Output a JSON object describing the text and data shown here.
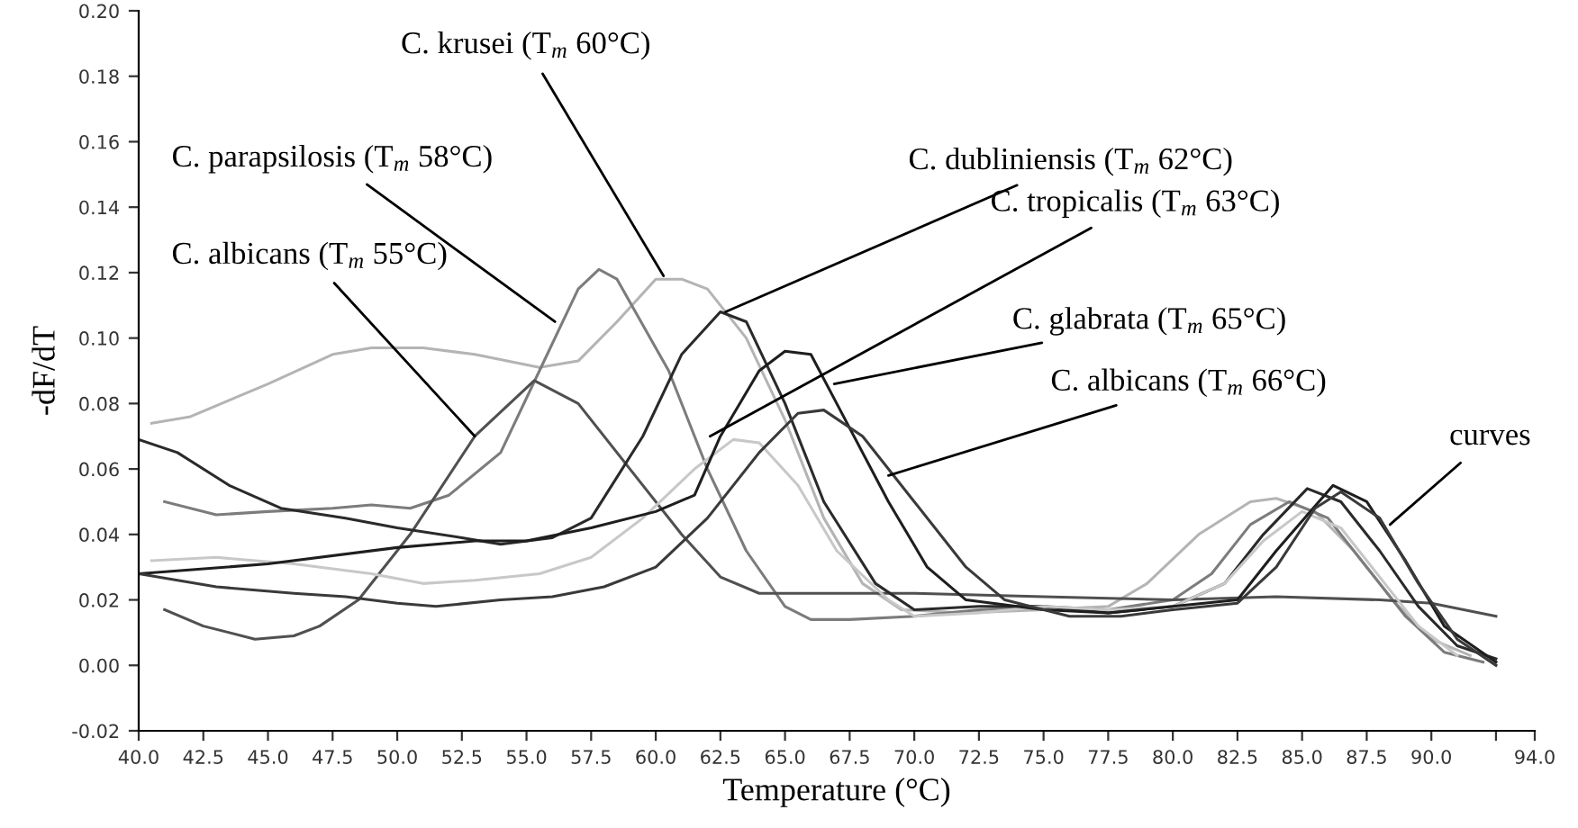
{
  "chart_data": {
    "type": "line",
    "xlabel": "Temperature (°C)",
    "ylabel": "-dF/dT",
    "xlim": [
      40,
      94
    ],
    "ylim": [
      -0.02,
      0.2
    ],
    "xticks": [
      {
        "value": 40,
        "label": "40.0"
      },
      {
        "value": 42.5,
        "label": "42.5"
      },
      {
        "value": 45,
        "label": "45.0"
      },
      {
        "value": 47.5,
        "label": "47.5"
      },
      {
        "value": 50,
        "label": "50.0"
      },
      {
        "value": 52.5,
        "label": "52.5"
      },
      {
        "value": 55,
        "label": "55.0"
      },
      {
        "value": 57.5,
        "label": "57.5"
      },
      {
        "value": 60,
        "label": "60.0"
      },
      {
        "value": 62.5,
        "label": "62.5"
      },
      {
        "value": 65,
        "label": "65.0"
      },
      {
        "value": 67.5,
        "label": "67.5"
      },
      {
        "value": 70,
        "label": "70.0"
      },
      {
        "value": 72.5,
        "label": "72.5"
      },
      {
        "value": 75,
        "label": "75.0"
      },
      {
        "value": 77.5,
        "label": "77.5"
      },
      {
        "value": 80,
        "label": "80.0"
      },
      {
        "value": 82.5,
        "label": "82.5"
      },
      {
        "value": 85,
        "label": "85.0"
      },
      {
        "value": 87.5,
        "label": "87.5"
      },
      {
        "value": 90,
        "label": "90.0"
      },
      {
        "value": 92.5,
        "label": null
      },
      {
        "value": 94,
        "label": "94.0"
      }
    ],
    "yticks": [
      {
        "value": -0.02,
        "label": "-0.02"
      },
      {
        "value": 0,
        "label": "0.00"
      },
      {
        "value": 0.02,
        "label": "0.02"
      },
      {
        "value": 0.04,
        "label": "0.04"
      },
      {
        "value": 0.06,
        "label": "0.06"
      },
      {
        "value": 0.08,
        "label": "0.08"
      },
      {
        "value": 0.1,
        "label": "0.10"
      },
      {
        "value": 0.12,
        "label": "0.12"
      },
      {
        "value": 0.14,
        "label": "0.14"
      },
      {
        "value": 0.16,
        "label": "0.16"
      },
      {
        "value": 0.18,
        "label": "0.18"
      },
      {
        "value": 0.2,
        "label": "0.20"
      }
    ],
    "grid": false,
    "legend": false,
    "line_style": "solid",
    "marker": "none",
    "series": [
      {
        "color": "#b4b4b4",
        "x": [
          40.5,
          42,
          45,
          47.5,
          49,
          51,
          53,
          55.5,
          57,
          58.5,
          60,
          61,
          62,
          63.5,
          65,
          66.5,
          68,
          69.5,
          72,
          75,
          77.5,
          79,
          81,
          83,
          84,
          85.5,
          87,
          88.5,
          90,
          91.5
        ],
        "values": [
          0.074,
          0.076,
          0.086,
          0.095,
          0.097,
          0.097,
          0.095,
          0.091,
          0.093,
          0.105,
          0.118,
          0.118,
          0.115,
          0.1,
          0.075,
          0.045,
          0.025,
          0.017,
          0.016,
          0.017,
          0.018,
          0.025,
          0.04,
          0.05,
          0.051,
          0.047,
          0.035,
          0.02,
          0.008,
          0.003
        ]
      },
      {
        "color": "#7c7c7c",
        "x": [
          41,
          43,
          45,
          47.5,
          49,
          50.5,
          52,
          54,
          55.5,
          57,
          57.8,
          58.5,
          60.5,
          62,
          63.5,
          65,
          66,
          67.5,
          70,
          72.5,
          75,
          77.5,
          80,
          81.5,
          83,
          84.5,
          86,
          87.5,
          89,
          90.5,
          92
        ],
        "values": [
          0.05,
          0.046,
          0.047,
          0.048,
          0.049,
          0.048,
          0.052,
          0.065,
          0.09,
          0.115,
          0.121,
          0.118,
          0.09,
          0.06,
          0.035,
          0.018,
          0.014,
          0.014,
          0.015,
          0.017,
          0.018,
          0.017,
          0.02,
          0.028,
          0.043,
          0.05,
          0.045,
          0.03,
          0.015,
          0.004,
          0.001
        ]
      },
      {
        "color": "#505050",
        "x": [
          41,
          42.5,
          44.5,
          46,
          47,
          48.5,
          50.5,
          53,
          55.3,
          57,
          59,
          61,
          62.5,
          64,
          67,
          70,
          75,
          80,
          84,
          88,
          90,
          92.5
        ],
        "values": [
          0.017,
          0.012,
          0.008,
          0.009,
          0.012,
          0.02,
          0.04,
          0.07,
          0.087,
          0.08,
          0.06,
          0.04,
          0.027,
          0.022,
          0.022,
          0.022,
          0.021,
          0.02,
          0.021,
          0.02,
          0.019,
          0.015
        ]
      },
      {
        "color": "#2a2a2a",
        "x": [
          40,
          41.5,
          43.5,
          45.5,
          48,
          50,
          52.5,
          54,
          56,
          57.5,
          59.5,
          61,
          62.5,
          63.5,
          65,
          66.5,
          68.5,
          70,
          72.5,
          75,
          77.5,
          80,
          82,
          83.5,
          85.2,
          86.5,
          88,
          89.5,
          91,
          92.5
        ],
        "values": [
          0.069,
          0.065,
          0.055,
          0.048,
          0.045,
          0.042,
          0.039,
          0.037,
          0.039,
          0.045,
          0.07,
          0.095,
          0.108,
          0.105,
          0.08,
          0.05,
          0.025,
          0.017,
          0.018,
          0.018,
          0.016,
          0.018,
          0.025,
          0.04,
          0.054,
          0.05,
          0.035,
          0.018,
          0.006,
          0.002
        ]
      },
      {
        "color": "#c8c8c8",
        "x": [
          40.5,
          43,
          46,
          49,
          51,
          53,
          55.5,
          57.5,
          59.5,
          61.5,
          63,
          64,
          65.5,
          67,
          69,
          70,
          72.5,
          75,
          77.5,
          80,
          82,
          83.5,
          85,
          86.5,
          88,
          89.5,
          91
        ],
        "values": [
          0.032,
          0.033,
          0.031,
          0.028,
          0.025,
          0.026,
          0.028,
          0.033,
          0.045,
          0.06,
          0.069,
          0.068,
          0.055,
          0.035,
          0.02,
          0.015,
          0.016,
          0.018,
          0.017,
          0.018,
          0.025,
          0.038,
          0.047,
          0.042,
          0.027,
          0.012,
          0.003
        ]
      },
      {
        "color": "#1e1e1e",
        "x": [
          40,
          45,
          50,
          53,
          55,
          57.5,
          60,
          61.5,
          62.5,
          64,
          65,
          66,
          67,
          69,
          70.5,
          72,
          75,
          77.5,
          80,
          82.5,
          84,
          86.2,
          87.5,
          89,
          90.5,
          92.5
        ],
        "values": [
          0.028,
          0.031,
          0.036,
          0.038,
          0.038,
          0.042,
          0.047,
          0.052,
          0.07,
          0.09,
          0.096,
          0.095,
          0.08,
          0.05,
          0.03,
          0.02,
          0.017,
          0.016,
          0.018,
          0.02,
          0.035,
          0.055,
          0.05,
          0.032,
          0.012,
          0.001
        ]
      },
      {
        "color": "#3a3a3a",
        "x": [
          40,
          43,
          46,
          48,
          50,
          51.5,
          54,
          56,
          58,
          60,
          62,
          64,
          65.5,
          66.5,
          68,
          70,
          72,
          73.5,
          76,
          78,
          80,
          82.5,
          84,
          85.5,
          86.5,
          88,
          89.5,
          91,
          92.5
        ],
        "values": [
          0.028,
          0.024,
          0.022,
          0.021,
          0.019,
          0.018,
          0.02,
          0.021,
          0.024,
          0.03,
          0.045,
          0.065,
          0.077,
          0.078,
          0.07,
          0.05,
          0.03,
          0.02,
          0.015,
          0.015,
          0.017,
          0.019,
          0.03,
          0.048,
          0.053,
          0.045,
          0.025,
          0.008,
          0.0
        ]
      }
    ],
    "annotations": [
      {
        "text": "C. krusei (T$_{m}$ 60°C)",
        "x": 60.3,
        "y": 0.119
      },
      {
        "text": "C. parapsilosis (T$_{m}$ 58°C)",
        "x": 56.1,
        "y": 0.105
      },
      {
        "text": "C. albicans (T$_{m}$ 55°C)",
        "x": 53,
        "y": 0.07
      },
      {
        "text": "C. dubliniensis (T$_{m}$ 62°C)",
        "x": 62.7,
        "y": 0.108
      },
      {
        "text": "C. tropicalis (T$_{m}$ 63°C)",
        "x": 62.1,
        "y": 0.07
      },
      {
        "text": "C. glabrata (T$_{m}$ 65°C)",
        "x": 66.9,
        "y": 0.086
      },
      {
        "text": "C. albicans (T$_{m}$ 66°C)",
        "x": 69,
        "y": 0.058
      },
      {
        "text": "curves",
        "x": 88.4,
        "y": 0.043
      }
    ]
  }
}
